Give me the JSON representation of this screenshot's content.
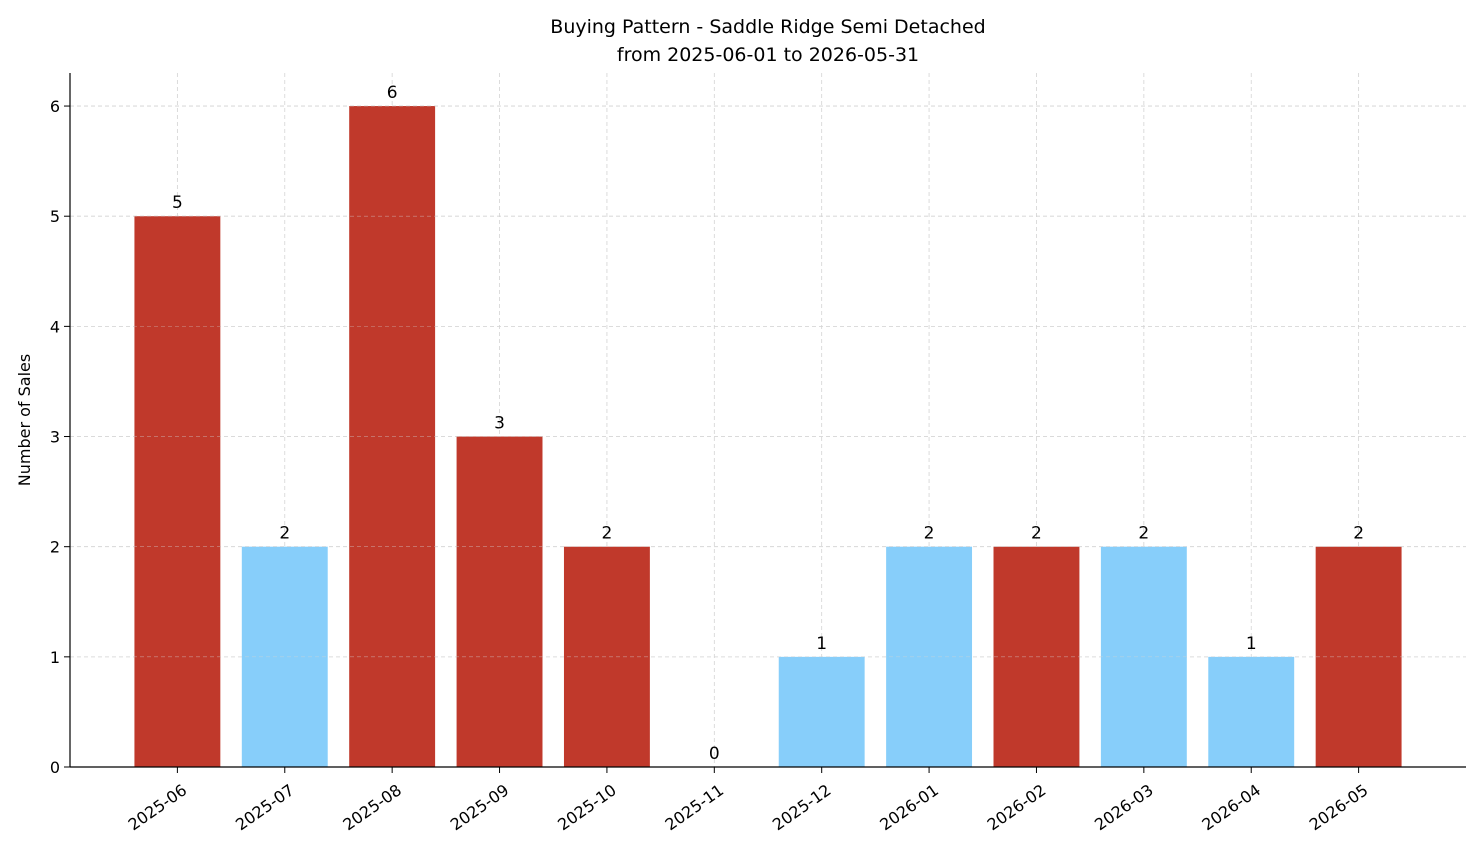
{
  "chart_data": {
    "type": "bar",
    "title": "Buying Pattern - Saddle Ridge Semi Detached",
    "subtitle": "from 2025-06-01 to 2026-05-31",
    "y_label": "Number of Sales",
    "categories": [
      "2025-06",
      "2025-07",
      "2025-08",
      "2025-09",
      "2025-10",
      "2025-11",
      "2025-12",
      "2026-01",
      "2026-02",
      "2026-03",
      "2026-04",
      "2026-05"
    ],
    "values": [
      5,
      2,
      6,
      3,
      2,
      0,
      1,
      2,
      2,
      2,
      1,
      2
    ],
    "colors": [
      "#c0392b",
      "#87cefa",
      "#c0392b",
      "#c0392b",
      "#c0392b",
      "#87cefa",
      "#87cefa",
      "#87cefa",
      "#c0392b",
      "#87cefa",
      "#87cefa",
      "#c0392b"
    ],
    "ylim": [
      0,
      6.3
    ],
    "yticks": [
      0,
      1,
      2,
      3,
      4,
      5,
      6
    ],
    "grid": true
  }
}
